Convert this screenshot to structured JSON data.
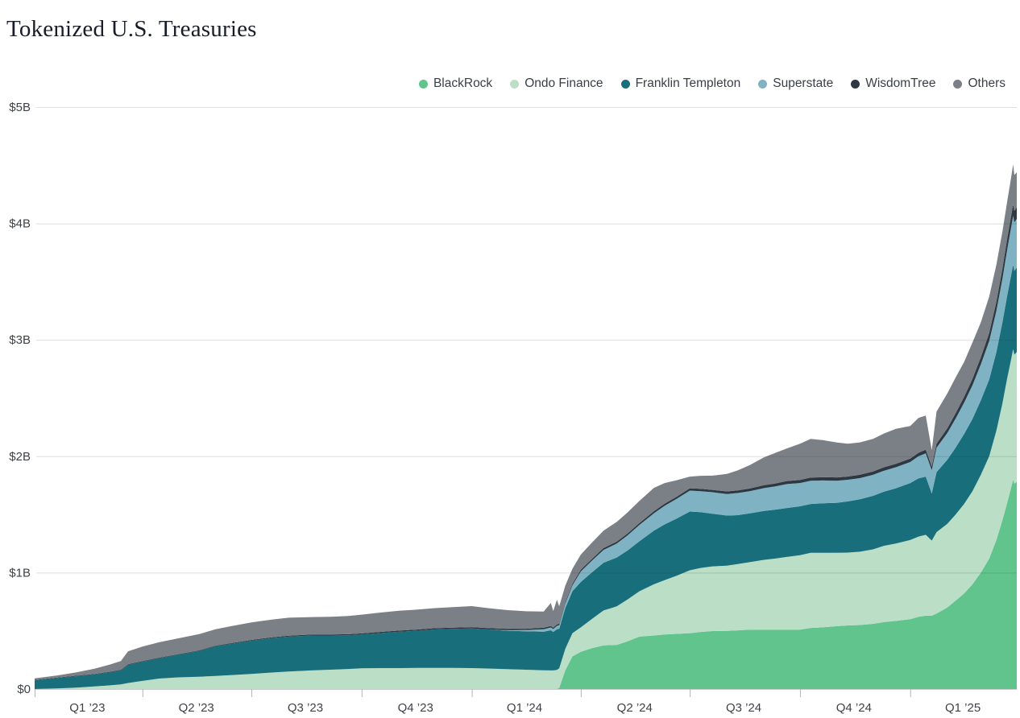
{
  "title": "Tokenized U.S. Treasuries",
  "chart_data": {
    "type": "area",
    "stacked": true,
    "title": "Tokenized U.S. Treasuries",
    "unit": "USD billions",
    "grid": "horizontal",
    "legend_position": "top-right",
    "ylim": [
      0,
      5
    ],
    "yticks": [
      {
        "value": 0,
        "label": "$0"
      },
      {
        "value": 1,
        "label": "$1B"
      },
      {
        "value": 2,
        "label": "$2B"
      },
      {
        "value": 3,
        "label": "$3B"
      },
      {
        "value": 4,
        "label": "$4B"
      },
      {
        "value": 5,
        "label": "$5B"
      }
    ],
    "x_range": [
      "2023-01-01",
      "2025-03-31"
    ],
    "xticks": [
      "2023-01-01",
      "2023-04-01",
      "2023-07-01",
      "2023-10-01",
      "2024-01-01",
      "2024-04-01",
      "2024-07-01",
      "2024-10-01",
      "2025-01-01"
    ],
    "xtick_labels": [
      {
        "label": "Q1 ’23",
        "center": "2023-02-14"
      },
      {
        "label": "Q2 ’23",
        "center": "2023-05-16"
      },
      {
        "label": "Q3 ’23",
        "center": "2023-08-15"
      },
      {
        "label": "Q4 ’23",
        "center": "2023-11-15"
      },
      {
        "label": "Q1 ’24",
        "center": "2024-02-14"
      },
      {
        "label": "Q2 ’24",
        "center": "2024-05-16"
      },
      {
        "label": "Q3 ’24",
        "center": "2024-08-15"
      },
      {
        "label": "Q4 ’24",
        "center": "2024-11-15"
      },
      {
        "label": "Q1 ’25",
        "center": "2025-02-14"
      }
    ],
    "dates": [
      "2023-01-01",
      "2023-01-20",
      "2023-02-05",
      "2023-02-20",
      "2023-03-05",
      "2023-03-14",
      "2023-03-20",
      "2023-04-01",
      "2023-04-15",
      "2023-05-01",
      "2023-05-18",
      "2023-06-01",
      "2023-06-15",
      "2023-07-01",
      "2023-07-18",
      "2023-08-01",
      "2023-08-20",
      "2023-09-05",
      "2023-09-20",
      "2023-10-01",
      "2023-10-16",
      "2023-11-01",
      "2023-11-16",
      "2023-12-01",
      "2023-12-16",
      "2024-01-01",
      "2024-01-16",
      "2024-02-01",
      "2024-02-15",
      "2024-03-01",
      "2024-03-07",
      "2024-03-09",
      "2024-03-12",
      "2024-03-14",
      "2024-03-19",
      "2024-03-25",
      "2024-04-01",
      "2024-04-10",
      "2024-04-20",
      "2024-05-01",
      "2024-05-10",
      "2024-05-20",
      "2024-06-01",
      "2024-06-10",
      "2024-06-20",
      "2024-07-01",
      "2024-07-10",
      "2024-07-20",
      "2024-08-01",
      "2024-08-10",
      "2024-08-20",
      "2024-09-01",
      "2024-09-10",
      "2024-09-20",
      "2024-10-01",
      "2024-10-10",
      "2024-10-20",
      "2024-11-01",
      "2024-11-10",
      "2024-11-20",
      "2024-12-01",
      "2024-12-10",
      "2024-12-20",
      "2025-01-01",
      "2025-01-08",
      "2025-01-14",
      "2025-01-19",
      "2025-01-23",
      "2025-02-01",
      "2025-02-08",
      "2025-02-15",
      "2025-02-22",
      "2025-03-01",
      "2025-03-08",
      "2025-03-14",
      "2025-03-19",
      "2025-03-23",
      "2025-03-26",
      "2025-03-28",
      "2025-03-29",
      "2025-03-31"
    ],
    "series": [
      {
        "name": "BlackRock",
        "color": "#60c48c",
        "values": [
          0,
          0,
          0,
          0,
          0,
          0,
          0,
          0,
          0,
          0,
          0,
          0,
          0,
          0,
          0,
          0,
          0,
          0,
          0,
          0,
          0,
          0,
          0,
          0,
          0,
          0,
          0,
          0,
          0,
          0,
          0,
          0,
          0,
          0.01,
          0.16,
          0.28,
          0.32,
          0.35,
          0.375,
          0.38,
          0.41,
          0.45,
          0.46,
          0.468,
          0.474,
          0.48,
          0.49,
          0.498,
          0.5,
          0.504,
          0.51,
          0.51,
          0.51,
          0.51,
          0.51,
          0.525,
          0.53,
          0.54,
          0.546,
          0.55,
          0.56,
          0.575,
          0.585,
          0.6,
          0.62,
          0.63,
          0.63,
          0.648,
          0.7,
          0.76,
          0.82,
          0.9,
          1.0,
          1.12,
          1.28,
          1.45,
          1.6,
          1.72,
          1.8,
          1.765,
          1.78
        ]
      },
      {
        "name": "Ondo Finance",
        "color": "#badfc6",
        "values": [
          0,
          0.005,
          0.012,
          0.022,
          0.032,
          0.04,
          0.052,
          0.07,
          0.09,
          0.1,
          0.106,
          0.112,
          0.12,
          0.13,
          0.142,
          0.15,
          0.16,
          0.166,
          0.172,
          0.178,
          0.18,
          0.18,
          0.181,
          0.182,
          0.181,
          0.18,
          0.176,
          0.17,
          0.166,
          0.161,
          0.16,
          0.16,
          0.164,
          0.168,
          0.185,
          0.2,
          0.21,
          0.25,
          0.3,
          0.33,
          0.36,
          0.39,
          0.44,
          0.468,
          0.5,
          0.54,
          0.55,
          0.556,
          0.56,
          0.57,
          0.58,
          0.6,
          0.61,
          0.625,
          0.64,
          0.645,
          0.64,
          0.63,
          0.626,
          0.63,
          0.64,
          0.655,
          0.665,
          0.68,
          0.69,
          0.695,
          0.645,
          0.7,
          0.72,
          0.74,
          0.77,
          0.8,
          0.84,
          0.88,
          0.94,
          1.005,
          1.07,
          1.1,
          1.12,
          1.108,
          1.115
        ]
      },
      {
        "name": "Franklin Templeton",
        "color": "#186e7b",
        "values": [
          0.075,
          0.09,
          0.098,
          0.103,
          0.112,
          0.12,
          0.155,
          0.165,
          0.175,
          0.195,
          0.22,
          0.255,
          0.27,
          0.285,
          0.295,
          0.3,
          0.3,
          0.294,
          0.29,
          0.29,
          0.3,
          0.312,
          0.32,
          0.33,
          0.336,
          0.34,
          0.335,
          0.33,
          0.33,
          0.332,
          0.345,
          0.33,
          0.35,
          0.34,
          0.35,
          0.36,
          0.39,
          0.4,
          0.41,
          0.42,
          0.42,
          0.43,
          0.46,
          0.478,
          0.49,
          0.505,
          0.48,
          0.452,
          0.43,
          0.42,
          0.42,
          0.42,
          0.42,
          0.42,
          0.42,
          0.42,
          0.426,
          0.43,
          0.44,
          0.45,
          0.46,
          0.465,
          0.475,
          0.49,
          0.5,
          0.5,
          0.405,
          0.515,
          0.55,
          0.575,
          0.6,
          0.62,
          0.64,
          0.66,
          0.675,
          0.695,
          0.71,
          0.72,
          0.728,
          0.72,
          0.725
        ]
      },
      {
        "name": "Superstate",
        "color": "#7fb3c3",
        "values": [
          0,
          0,
          0,
          0,
          0,
          0,
          0,
          0,
          0,
          0,
          0,
          0,
          0,
          0,
          0,
          0,
          0,
          0,
          0,
          0,
          0,
          0,
          0,
          0,
          0,
          0,
          0,
          0.005,
          0.01,
          0.02,
          0.024,
          0.025,
          0.028,
          0.03,
          0.038,
          0.05,
          0.09,
          0.1,
          0.11,
          0.12,
          0.13,
          0.14,
          0.15,
          0.16,
          0.17,
          0.18,
          0.18,
          0.185,
          0.186,
          0.19,
          0.19,
          0.196,
          0.2,
          0.206,
          0.2,
          0.2,
          0.196,
          0.19,
          0.186,
          0.182,
          0.18,
          0.18,
          0.18,
          0.18,
          0.19,
          0.2,
          0.2,
          0.21,
          0.23,
          0.25,
          0.27,
          0.29,
          0.31,
          0.33,
          0.355,
          0.375,
          0.395,
          0.41,
          0.418,
          0.415,
          0.42
        ]
      },
      {
        "name": "WisdomTree",
        "color": "#2d3843",
        "values": [
          0.004,
          0.004,
          0.005,
          0.005,
          0.005,
          0.005,
          0.005,
          0.005,
          0.005,
          0.005,
          0.005,
          0.006,
          0.006,
          0.007,
          0.008,
          0.008,
          0.009,
          0.009,
          0.009,
          0.01,
          0.01,
          0.01,
          0.01,
          0.011,
          0.011,
          0.012,
          0.012,
          0.012,
          0.012,
          0.013,
          0.013,
          0.013,
          0.013,
          0.013,
          0.013,
          0.014,
          0.015,
          0.015,
          0.016,
          0.016,
          0.017,
          0.017,
          0.018,
          0.018,
          0.018,
          0.02,
          0.02,
          0.02,
          0.022,
          0.022,
          0.023,
          0.025,
          0.025,
          0.026,
          0.027,
          0.027,
          0.028,
          0.028,
          0.028,
          0.029,
          0.029,
          0.03,
          0.03,
          0.03,
          0.03,
          0.032,
          0.032,
          0.035,
          0.04,
          0.045,
          0.05,
          0.055,
          0.06,
          0.07,
          0.078,
          0.088,
          0.094,
          0.098,
          0.1,
          0.1,
          0.1
        ]
      },
      {
        "name": "Others",
        "color": "#7b8087",
        "values": [
          0.012,
          0.018,
          0.028,
          0.045,
          0.062,
          0.075,
          0.112,
          0.125,
          0.132,
          0.136,
          0.14,
          0.14,
          0.146,
          0.15,
          0.152,
          0.155,
          0.149,
          0.152,
          0.156,
          0.161,
          0.166,
          0.17,
          0.171,
          0.172,
          0.176,
          0.18,
          0.17,
          0.16,
          0.15,
          0.14,
          0.198,
          0.142,
          0.212,
          0.15,
          0.142,
          0.13,
          0.13,
          0.14,
          0.15,
          0.17,
          0.18,
          0.19,
          0.2,
          0.178,
          0.142,
          0.1,
          0.112,
          0.122,
          0.15,
          0.172,
          0.2,
          0.24,
          0.262,
          0.28,
          0.31,
          0.332,
          0.318,
          0.3,
          0.282,
          0.278,
          0.28,
          0.29,
          0.3,
          0.28,
          0.3,
          0.292,
          0.14,
          0.275,
          0.3,
          0.308,
          0.3,
          0.312,
          0.3,
          0.312,
          0.318,
          0.318,
          0.32,
          0.33,
          0.342,
          0.308,
          0.3
        ]
      }
    ],
    "style": {
      "gridline_color": "rgba(45,50,65,0.16)",
      "axis_line_color": "#c9cbce",
      "tick_color": "#b0b3b7",
      "tick_label_color": "#3e4248",
      "title_color": "#191d29"
    }
  }
}
